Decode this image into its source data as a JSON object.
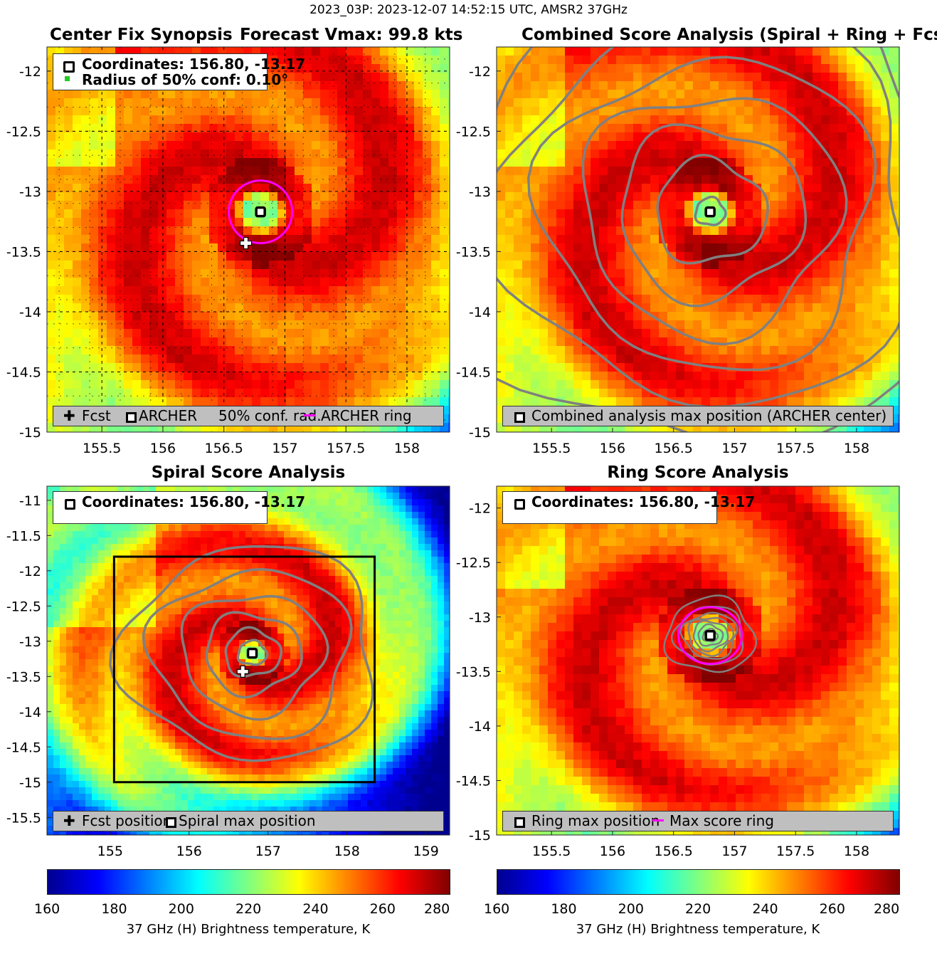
{
  "suptitle": "2023_03P: 2023-12-07 14:52:15 UTC, AMSR2 37GHz",
  "colormap": [
    "#00008f",
    "#0000ff",
    "#0080ff",
    "#00ffff",
    "#80ff80",
    "#ffff00",
    "#ff8000",
    "#ff0000",
    "#800000"
  ],
  "panels": {
    "p1": {
      "title_left": "Center Fix Synopsis",
      "title_right": "Forecast Vmax: 99.8 kts",
      "info_line1": "Coordinates: 156.80, -13.17",
      "info_line2": "Radius of 50% conf: 0.10°",
      "legend": [
        "Fcst",
        "ARCHER",
        "50% conf. rad.",
        "ARCHER ring"
      ]
    },
    "p2": {
      "title": "Combined Score Analysis (Spiral + Ring + Fcst_Pe",
      "legend": [
        "Combined analysis max position (ARCHER center)"
      ]
    },
    "p3": {
      "title": "Spiral Score Analysis",
      "info_line1": "Coordinates: 156.80, -13.17",
      "legend": [
        "Fcst position",
        "Spiral max position"
      ]
    },
    "p4": {
      "title": "Ring Score Analysis",
      "info_line1": "Coordinates: 156.80, -13.17",
      "legend": [
        "Ring max position",
        "Max score ring"
      ]
    }
  },
  "colorbar": {
    "label": "37 GHz (H) Brightness temperature, K",
    "ticks": [
      "160",
      "180",
      "200",
      "220",
      "240",
      "260",
      "280"
    ]
  },
  "chart_data": [
    {
      "type": "heatmap",
      "title": "Center Fix Synopsis",
      "xlim": [
        155.05,
        158.35
      ],
      "ylim": [
        -15.0,
        -11.8
      ],
      "xticks": [
        "155.5",
        "156",
        "156.5",
        "157",
        "157.5",
        "158"
      ],
      "yticks": [
        "-12",
        "-12.5",
        "-13",
        "-13.5",
        "-14",
        "-14.5",
        "-15"
      ],
      "center": [
        156.8,
        -13.17
      ],
      "forecast": [
        156.68,
        -13.43
      ],
      "ring_radius_deg": 0.26,
      "confidence_radius_deg": 0.1,
      "grid": true
    },
    {
      "type": "heatmap",
      "title": "Combined Score Analysis",
      "xlim": [
        155.05,
        158.35
      ],
      "ylim": [
        -15.0,
        -11.8
      ],
      "xticks": [
        "155.5",
        "156",
        "156.5",
        "157",
        "157.5",
        "158"
      ],
      "yticks": [
        "-12",
        "-12.5",
        "-13",
        "-13.5",
        "-14",
        "-14.5",
        "-15"
      ],
      "center": [
        156.8,
        -13.17
      ],
      "contours": true
    },
    {
      "type": "heatmap",
      "title": "Spiral Score Analysis",
      "xlim": [
        154.2,
        159.3
      ],
      "ylim": [
        -15.75,
        -10.8
      ],
      "xticks": [
        "155",
        "156",
        "157",
        "158",
        "159"
      ],
      "yticks": [
        "-11",
        "-11.5",
        "-12",
        "-12.5",
        "-13",
        "-13.5",
        "-14",
        "-14.5",
        "-15",
        "-15.5"
      ],
      "center": [
        156.8,
        -13.17
      ],
      "forecast": [
        156.68,
        -13.43
      ],
      "search_box": [
        155.05,
        158.35,
        -15.0,
        -11.8
      ],
      "contours": true
    },
    {
      "type": "heatmap",
      "title": "Ring Score Analysis",
      "xlim": [
        155.05,
        158.35
      ],
      "ylim": [
        -15.0,
        -11.8
      ],
      "xticks": [
        "155.5",
        "156",
        "156.5",
        "157",
        "157.5",
        "158"
      ],
      "yticks": [
        "-12",
        "-12.5",
        "-13",
        "-13.5",
        "-14",
        "-14.5",
        "-15"
      ],
      "center": [
        156.8,
        -13.17
      ],
      "ring_radius_deg": 0.26,
      "contours": true
    }
  ]
}
